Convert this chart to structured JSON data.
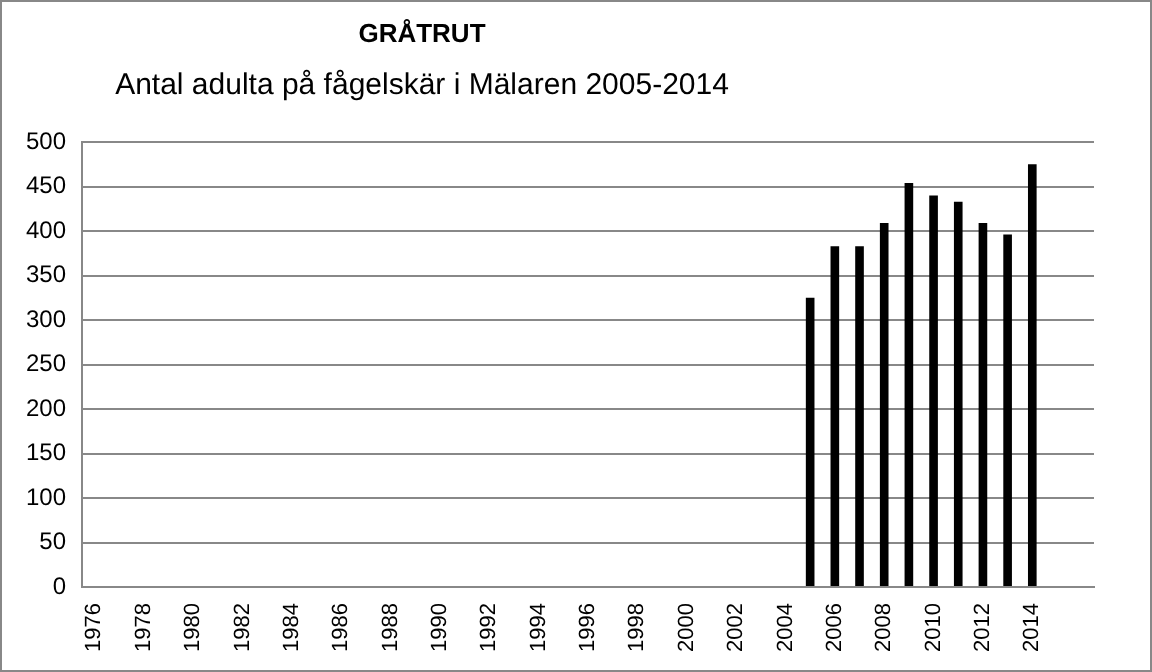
{
  "chart_data": {
    "type": "bar",
    "title": "GRÅTRUT",
    "subtitle": "Antal adulta på fågelskär i Mälaren 2005-2014",
    "categories": [
      "1976",
      null,
      "1978",
      null,
      "1980",
      null,
      "1982",
      null,
      "1984",
      null,
      "1986",
      null,
      "1988",
      null,
      "1990",
      null,
      "1992",
      null,
      "1994",
      null,
      "1996",
      null,
      "1998",
      null,
      "2000",
      null,
      "2002",
      null,
      "2004",
      null,
      "2006",
      null,
      "2008",
      null,
      "2010",
      null,
      "2012",
      null,
      "2014",
      null,
      null
    ],
    "values": [
      null,
      null,
      null,
      null,
      null,
      null,
      null,
      null,
      null,
      null,
      null,
      null,
      null,
      null,
      null,
      null,
      null,
      null,
      null,
      null,
      null,
      null,
      null,
      null,
      null,
      null,
      null,
      null,
      null,
      325,
      383,
      383,
      409,
      454,
      440,
      433,
      409,
      396,
      475,
      null,
      null
    ],
    "color": "#000000",
    "ylim": [
      0,
      500
    ],
    "yticks": [
      0,
      50,
      100,
      150,
      200,
      250,
      300,
      350,
      400,
      450,
      500
    ],
    "grid": "y",
    "legend": false
  }
}
